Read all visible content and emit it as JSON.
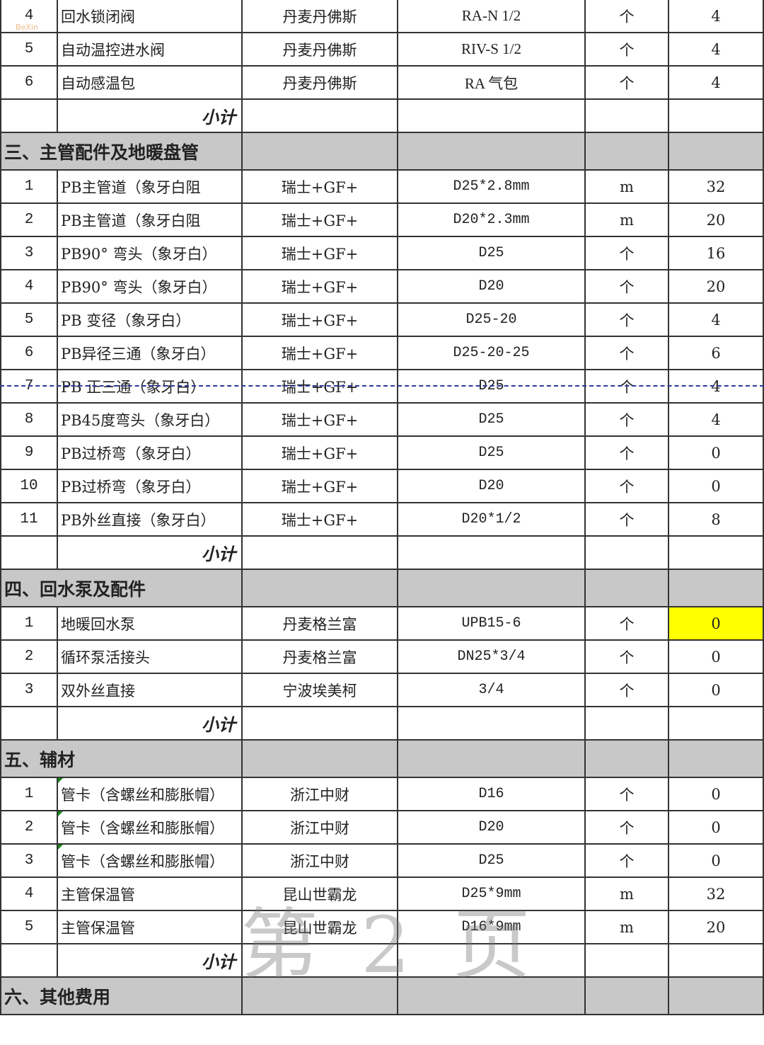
{
  "subtotal_label": "小计",
  "watermark": "第2页",
  "logo_text": "BeXin",
  "highlight_color": "#ffff00",
  "section_bg": "#c8c8c8",
  "top_rows": [
    {
      "no": "4",
      "name": "回水锁闭阀",
      "brand": "丹麦丹佛斯",
      "spec": "RA-N 1/2",
      "unit": "个",
      "qty": "4"
    },
    {
      "no": "5",
      "name": "自动温控进水阀",
      "brand": "丹麦丹佛斯",
      "spec": "RIV-S 1/2",
      "unit": "个",
      "qty": "4"
    },
    {
      "no": "6",
      "name": "自动感温包",
      "brand": "丹麦丹佛斯",
      "spec": "RA 气包",
      "unit": "个",
      "qty": "4"
    }
  ],
  "sections": [
    {
      "title": "三、主管配件及地暖盘管",
      "rows": [
        {
          "no": "1",
          "name": "PB主管道（象牙白阻",
          "brand": "瑞士+GF+",
          "spec": "D25*2.8mm",
          "unit": "m",
          "qty": "32"
        },
        {
          "no": "2",
          "name": "PB主管道（象牙白阻",
          "brand": "瑞士+GF+",
          "spec": "D20*2.3mm",
          "unit": "m",
          "qty": "20"
        },
        {
          "no": "3",
          "name": "PB90° 弯头（象牙白）",
          "brand": "瑞士+GF+",
          "spec": "D25",
          "unit": "个",
          "qty": "16"
        },
        {
          "no": "4",
          "name": "PB90° 弯头（象牙白）",
          "brand": "瑞士+GF+",
          "spec": "D20",
          "unit": "个",
          "qty": "20"
        },
        {
          "no": "5",
          "name": "PB 变径（象牙白）",
          "brand": "瑞士+GF+",
          "spec": "D25-20",
          "unit": "个",
          "qty": "4"
        },
        {
          "no": "6",
          "name": "PB异径三通（象牙白）",
          "brand": "瑞士+GF+",
          "spec": "D25-20-25",
          "unit": "个",
          "qty": "6"
        },
        {
          "no": "7",
          "name": "PB 正三通（象牙白）",
          "brand": "瑞士+GF+",
          "spec": "D25",
          "unit": "个",
          "qty": "4"
        },
        {
          "no": "8",
          "name": "PB45度弯头（象牙白）",
          "brand": "瑞士+GF+",
          "spec": "D25",
          "unit": "个",
          "qty": "4"
        },
        {
          "no": "9",
          "name": "PB过桥弯（象牙白）",
          "brand": "瑞士+GF+",
          "spec": "D25",
          "unit": "个",
          "qty": "0"
        },
        {
          "no": "10",
          "name": "PB过桥弯（象牙白）",
          "brand": "瑞士+GF+",
          "spec": "D20",
          "unit": "个",
          "qty": "0"
        },
        {
          "no": "11",
          "name": "PB外丝直接（象牙白）",
          "brand": "瑞士+GF+",
          "spec": "D20*1/2",
          "unit": "个",
          "qty": "8"
        }
      ]
    },
    {
      "title": "四、回水泵及配件",
      "rows": [
        {
          "no": "1",
          "name": "地暖回水泵",
          "brand": "丹麦格兰富",
          "spec": "UPB15-6",
          "unit": "个",
          "qty": "0",
          "highlight": true
        },
        {
          "no": "2",
          "name": "循环泵活接头",
          "brand": "丹麦格兰富",
          "spec": "DN25*3/4",
          "unit": "个",
          "qty": "0"
        },
        {
          "no": "3",
          "name": "双外丝直接",
          "brand": "宁波埃美柯",
          "spec": "3/4",
          "unit": "个",
          "qty": "0"
        }
      ]
    },
    {
      "title": "五、辅材",
      "rows": [
        {
          "no": "1",
          "name": "管卡（含螺丝和膨胀帽）",
          "brand": "浙江中财",
          "spec": "D16",
          "unit": "个",
          "qty": "0"
        },
        {
          "no": "2",
          "name": "管卡（含螺丝和膨胀帽）",
          "brand": "浙江中财",
          "spec": "D20",
          "unit": "个",
          "qty": "0"
        },
        {
          "no": "3",
          "name": "管卡（含螺丝和膨胀帽）",
          "brand": "浙江中财",
          "spec": "D25",
          "unit": "个",
          "qty": "0"
        },
        {
          "no": "4",
          "name": "主管保温管",
          "brand": "昆山世霸龙",
          "spec": "D25*9mm",
          "unit": "m",
          "qty": "32"
        },
        {
          "no": "5",
          "name": "主管保温管",
          "brand": "昆山世霸龙",
          "spec": "D16*9mm",
          "unit": "m",
          "qty": "20"
        }
      ]
    },
    {
      "title": "六、其他费用",
      "rows": []
    }
  ]
}
